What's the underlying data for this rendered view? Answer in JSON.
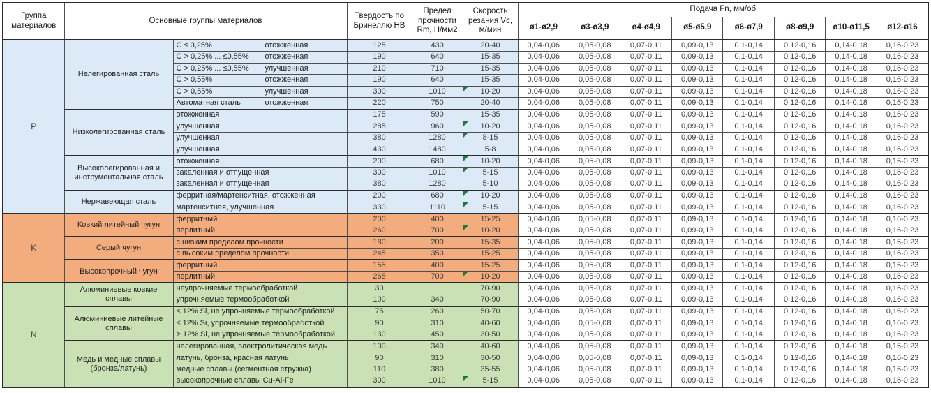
{
  "table": {
    "headers": {
      "group": "Группа материалов",
      "materials": "Основные группы материалов",
      "hardness": "Твердость по Бринеллю HB",
      "strength": "Предел прочности Rm, Н/мм2",
      "speed": "Скорость резания Vc, м/мин",
      "feed": "Подача Fn, мм/об",
      "feed_columns": [
        "ø1-ø2,9",
        "ø3-ø3,9",
        "ø4-ø4,9",
        "ø5-ø5,9",
        "ø6-ø7,9",
        "ø8-ø9,9",
        "ø10-ø11,5",
        "ø12-ø16"
      ]
    },
    "feed_values": [
      "0,04-0,06",
      "0,05-0,08",
      "0,07-0,11",
      "0,09-0,13",
      "0,1-0,14",
      "0,12-0,16",
      "0,14-0,18",
      "0,16-0,23"
    ],
    "groups": [
      {
        "id": "P",
        "color": "#DCE9F6",
        "subgroups": [
          {
            "name": "Нелегированная сталь",
            "rows": [
              {
                "condition": "C ≤ 0,25%",
                "state": "отожженная",
                "hb": "125",
                "rm": "430",
                "vc": "20-40",
                "flag": false
              },
              {
                "condition": "C > 0,25% ... ≤0,55%",
                "state": "отожженная",
                "hb": "190",
                "rm": "640",
                "vc": "15-35",
                "flag": false
              },
              {
                "condition": "C > 0,25% ... ≤0,55%",
                "state": "улучшенная",
                "hb": "210",
                "rm": "710",
                "vc": "15-35",
                "flag": false
              },
              {
                "condition": "C > 0,55%",
                "state": "отожженная",
                "hb": "190",
                "rm": "640",
                "vc": "15-35",
                "flag": false
              },
              {
                "condition": "C > 0,55%",
                "state": "улучшенная",
                "hb": "300",
                "rm": "1010",
                "vc": "10-20",
                "flag": true
              },
              {
                "condition": "Автоматная сталь",
                "state": "отожженная",
                "hb": "220",
                "rm": "750",
                "vc": "20-40",
                "flag": false
              }
            ]
          },
          {
            "name": "Низколегированная сталь",
            "rows": [
              {
                "detail": "отожженная",
                "hb": "175",
                "rm": "590",
                "vc": "15-35",
                "flag": false
              },
              {
                "detail": "улучшенная",
                "hb": "285",
                "rm": "960",
                "vc": "10-20",
                "flag": true
              },
              {
                "detail": "улучшенная",
                "hb": "380",
                "rm": "1280",
                "vc": "8-15",
                "flag": true
              },
              {
                "detail": "улучшенная",
                "hb": "430",
                "rm": "1480",
                "vc": "5-8",
                "flag": false
              }
            ]
          },
          {
            "name": "Высоколегированная и инструментальная сталь",
            "rows": [
              {
                "detail": "отожженная",
                "hb": "200",
                "rm": "680",
                "vc": "10-20",
                "flag": true
              },
              {
                "detail": "закаленная и отпущенная",
                "hb": "300",
                "rm": "1010",
                "vc": "5-15",
                "flag": true
              },
              {
                "detail": "закаленная и отпущенная",
                "hb": "380",
                "rm": "1280",
                "vc": "5-10",
                "flag": false
              }
            ]
          },
          {
            "name": "Нержавеющая сталь",
            "rows": [
              {
                "detail": "ферритная/мартенситная, отожженная",
                "hb": "200",
                "rm": "680",
                "vc": "10-20",
                "flag": true
              },
              {
                "detail": "мартенситная, улучшенная",
                "hb": "330",
                "rm": "1110",
                "vc": "5-15",
                "flag": true
              }
            ]
          }
        ]
      },
      {
        "id": "K",
        "color": "#F3AC7E",
        "subgroups": [
          {
            "name": "Ковкий литейный чугун",
            "rows": [
              {
                "detail": "ферритный",
                "hb": "200",
                "rm": "400",
                "vc": "15-25",
                "flag": false
              },
              {
                "detail": "перлитный",
                "hb": "260",
                "rm": "700",
                "vc": "10-20",
                "flag": true
              }
            ]
          },
          {
            "name": "Серый чугун",
            "rows": [
              {
                "detail": "с низким пределом прочности",
                "hb": "180",
                "rm": "200",
                "vc": "15-35",
                "flag": false
              },
              {
                "detail": "с высоким пределом прочности",
                "hb": "245",
                "rm": "350",
                "vc": "15-25",
                "flag": false
              }
            ]
          },
          {
            "name": "Высокопрочный чугун",
            "rows": [
              {
                "detail": "ферритный",
                "hb": "155",
                "rm": "400",
                "vc": "15-25",
                "flag": false
              },
              {
                "detail": "перлитный",
                "hb": "265",
                "rm": "700",
                "vc": "10-20",
                "flag": true
              }
            ]
          }
        ]
      },
      {
        "id": "N",
        "color": "#C9E1B4",
        "subgroups": [
          {
            "name": "Алюминиевые ковкие сплавы",
            "rows": [
              {
                "detail": "неупрочняемые термообработкой",
                "hb": "30",
                "rm": "",
                "vc": "70-90",
                "flag": false
              },
              {
                "detail": "упрочняемые термообработкой",
                "hb": "100",
                "rm": "340",
                "vc": "70-90",
                "flag": false
              }
            ]
          },
          {
            "name": "Алюминиевые литейные сплавы",
            "rows": [
              {
                "detail": "≤ 12% Si, не упрочняемые термообработкой",
                "hb": "75",
                "rm": "260",
                "vc": "50-70",
                "flag": false
              },
              {
                "detail": "≤ 12% Si, упрочняемые термообработкой",
                "hb": "90",
                "rm": "310",
                "vc": "40-60",
                "flag": false
              },
              {
                "detail": "> 12% Si, не упрочняемые термообработкой",
                "hb": "130",
                "rm": "450",
                "vc": "30-50",
                "flag": false
              }
            ]
          },
          {
            "name": "Медь и медные сплавы (бронза/латунь)",
            "rows": [
              {
                "detail": "нелегированная, электролитическая медь",
                "hb": "100",
                "rm": "340",
                "vc": "40-60",
                "flag": false
              },
              {
                "detail": "латунь, бронза, красная латунь",
                "hb": "90",
                "rm": "310",
                "vc": "30-50",
                "flag": false
              },
              {
                "detail": "медные сплавы (сегментная стружка)",
                "hb": "110",
                "rm": "380",
                "vc": "35-55",
                "flag": false
              },
              {
                "detail": "высокопрочные сплавы Cu-Al-Fe",
                "hb": "300",
                "rm": "1010",
                "vc": "5-15",
                "flag": true
              }
            ]
          }
        ]
      }
    ]
  },
  "colors": {
    "group_p": "#DCE9F6",
    "group_k": "#F3AC7E",
    "group_n": "#C9E1B4",
    "flag_triangle": "#1E7A3C",
    "border": "#2b2b2b"
  }
}
